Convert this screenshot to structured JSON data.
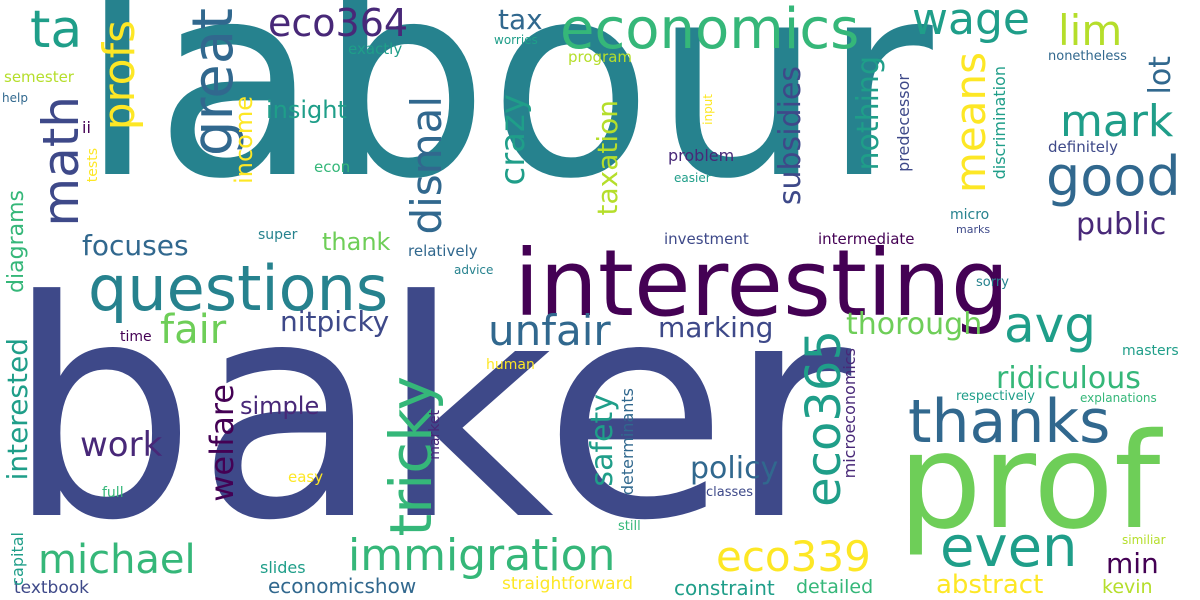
{
  "palette": [
    "#440154",
    "#482878",
    "#3e4989",
    "#31688e",
    "#26828e",
    "#1f9e89",
    "#35b779",
    "#6ece58",
    "#b5de2b",
    "#fde725"
  ],
  "words": [
    {
      "text": "labour",
      "color": "#26828e",
      "orientation": "horizontal"
    },
    {
      "text": "baker",
      "color": "#3e4989",
      "orientation": "horizontal"
    },
    {
      "text": "interesting",
      "color": "#440154",
      "orientation": "horizontal"
    },
    {
      "text": "prof",
      "color": "#6ece58",
      "orientation": "horizontal"
    },
    {
      "text": "questions",
      "color": "#26828e",
      "orientation": "horizontal"
    },
    {
      "text": "economics",
      "color": "#35b779",
      "orientation": "horizontal"
    },
    {
      "text": "thanks",
      "color": "#31688e",
      "orientation": "horizontal"
    },
    {
      "text": "immigration",
      "color": "#35b779",
      "orientation": "horizontal"
    },
    {
      "text": "even",
      "color": "#1f9e89",
      "orientation": "horizontal"
    },
    {
      "text": "avg",
      "color": "#1f9e89",
      "orientation": "horizontal"
    },
    {
      "text": "good",
      "color": "#31688e",
      "orientation": "horizontal"
    },
    {
      "text": "eco339",
      "color": "#fde725",
      "orientation": "horizontal"
    },
    {
      "text": "unfair",
      "color": "#31688e",
      "orientation": "horizontal"
    },
    {
      "text": "michael",
      "color": "#35b779",
      "orientation": "horizontal"
    },
    {
      "text": "mark",
      "color": "#1f9e89",
      "orientation": "horizontal"
    },
    {
      "text": "eco364",
      "color": "#482878",
      "orientation": "horizontal"
    },
    {
      "text": "wage",
      "color": "#1f9e89",
      "orientation": "horizontal"
    },
    {
      "text": "ta",
      "color": "#1f9e89",
      "orientation": "horizontal"
    },
    {
      "text": "fair",
      "color": "#6ece58",
      "orientation": "horizontal"
    },
    {
      "text": "lim",
      "color": "#b5de2b",
      "orientation": "horizontal"
    },
    {
      "text": "work",
      "color": "#482878",
      "orientation": "horizontal"
    },
    {
      "text": "nitpicky",
      "color": "#3e4989",
      "orientation": "horizontal"
    },
    {
      "text": "ridiculous",
      "color": "#35b779",
      "orientation": "horizontal"
    },
    {
      "text": "thorough",
      "color": "#6ece58",
      "orientation": "horizontal"
    },
    {
      "text": "marking",
      "color": "#3e4989",
      "orientation": "horizontal"
    },
    {
      "text": "policy",
      "color": "#31688e",
      "orientation": "horizontal"
    },
    {
      "text": "public",
      "color": "#482878",
      "orientation": "horizontal"
    },
    {
      "text": "focuses",
      "color": "#31688e",
      "orientation": "horizontal"
    },
    {
      "text": "abstract",
      "color": "#fde725",
      "orientation": "horizontal"
    },
    {
      "text": "min",
      "color": "#440154",
      "orientation": "horizontal"
    },
    {
      "text": "simple",
      "color": "#482878",
      "orientation": "horizontal"
    },
    {
      "text": "insight",
      "color": "#1f9e89",
      "orientation": "horizontal"
    },
    {
      "text": "thank",
      "color": "#6ece58",
      "orientation": "horizontal"
    },
    {
      "text": "tax",
      "color": "#31688e",
      "orientation": "horizontal"
    },
    {
      "text": "economicshow",
      "color": "#31688e",
      "orientation": "horizontal"
    },
    {
      "text": "slides",
      "color": "#1f9e89",
      "orientation": "horizontal"
    },
    {
      "text": "constraint",
      "color": "#1f9e89",
      "orientation": "horizontal"
    },
    {
      "text": "straightforward",
      "color": "#fde725",
      "orientation": "horizontal"
    },
    {
      "text": "detailed",
      "color": "#35b779",
      "orientation": "horizontal"
    },
    {
      "text": "kevin",
      "color": "#b5de2b",
      "orientation": "horizontal"
    },
    {
      "text": "textbook",
      "color": "#3e4989",
      "orientation": "horizontal"
    },
    {
      "text": "investment",
      "color": "#3e4989",
      "orientation": "horizontal"
    },
    {
      "text": "intermediate",
      "color": "#440154",
      "orientation": "horizontal"
    },
    {
      "text": "relatively",
      "color": "#31688e",
      "orientation": "horizontal"
    },
    {
      "text": "problem",
      "color": "#482878",
      "orientation": "horizontal"
    },
    {
      "text": "exactly",
      "color": "#1f9e89",
      "orientation": "horizontal"
    },
    {
      "text": "semester",
      "color": "#b5de2b",
      "orientation": "horizontal"
    },
    {
      "text": "program",
      "color": "#b5de2b",
      "orientation": "horizontal"
    },
    {
      "text": "worries",
      "color": "#1f9e89",
      "orientation": "horizontal"
    },
    {
      "text": "nonetheless",
      "color": "#31688e",
      "orientation": "horizontal"
    },
    {
      "text": "definitely",
      "color": "#3e4989",
      "orientation": "horizontal"
    },
    {
      "text": "masters",
      "color": "#1f9e89",
      "orientation": "horizontal"
    },
    {
      "text": "respectively",
      "color": "#1f9e89",
      "orientation": "horizontal"
    },
    {
      "text": "explanations",
      "color": "#35b779",
      "orientation": "horizontal"
    },
    {
      "text": "similiar",
      "color": "#b5de2b",
      "orientation": "horizontal"
    },
    {
      "text": "sorry",
      "color": "#26828e",
      "orientation": "horizontal"
    },
    {
      "text": "marks",
      "color": "#3e4989",
      "orientation": "horizontal"
    },
    {
      "text": "super",
      "color": "#26828e",
      "orientation": "horizontal"
    },
    {
      "text": "advice",
      "color": "#26828e",
      "orientation": "horizontal"
    },
    {
      "text": "human",
      "color": "#fde725",
      "orientation": "horizontal"
    },
    {
      "text": "easy",
      "color": "#fde725",
      "orientation": "horizontal"
    },
    {
      "text": "econ",
      "color": "#35b779",
      "orientation": "horizontal"
    },
    {
      "text": "easier",
      "color": "#1f9e89",
      "orientation": "horizontal"
    },
    {
      "text": "classes",
      "color": "#3e4989",
      "orientation": "horizontal"
    },
    {
      "text": "still",
      "color": "#35b779",
      "orientation": "horizontal"
    },
    {
      "text": "micro",
      "color": "#26828e",
      "orientation": "horizontal"
    },
    {
      "text": "time",
      "color": "#440154",
      "orientation": "horizontal"
    },
    {
      "text": "help",
      "color": "#31688e",
      "orientation": "horizontal"
    },
    {
      "text": "ii",
      "color": "#440154",
      "orientation": "horizontal"
    },
    {
      "text": "full",
      "color": "#35b779",
      "orientation": "horizontal"
    },
    {
      "text": "math",
      "color": "#3e4989",
      "orientation": "vertical"
    },
    {
      "text": "profs",
      "color": "#fde725",
      "orientation": "vertical"
    },
    {
      "text": "great",
      "color": "#31688e",
      "orientation": "vertical"
    },
    {
      "text": "dismal",
      "color": "#31688e",
      "orientation": "vertical"
    },
    {
      "text": "income",
      "color": "#fde725",
      "orientation": "vertical"
    },
    {
      "text": "crazy",
      "color": "#1f9e89",
      "orientation": "vertical"
    },
    {
      "text": "means",
      "color": "#fde725",
      "orientation": "vertical"
    },
    {
      "text": "subsidies",
      "color": "#3e4989",
      "orientation": "vertical"
    },
    {
      "text": "taxation",
      "color": "#b5de2b",
      "orientation": "vertical"
    },
    {
      "text": "nothing",
      "color": "#1f9e89",
      "orientation": "vertical"
    },
    {
      "text": "lot",
      "color": "#31688e",
      "orientation": "vertical"
    },
    {
      "text": "tricky",
      "color": "#35b779",
      "orientation": "vertical"
    },
    {
      "text": "eco365",
      "color": "#1f9e89",
      "orientation": "vertical"
    },
    {
      "text": "welfare",
      "color": "#440154",
      "orientation": "vertical"
    },
    {
      "text": "interested",
      "color": "#1f9e89",
      "orientation": "vertical"
    },
    {
      "text": "diagrams",
      "color": "#35b779",
      "orientation": "vertical"
    },
    {
      "text": "safety",
      "color": "#1f9e89",
      "orientation": "vertical"
    },
    {
      "text": "microeconomics",
      "color": "#482878",
      "orientation": "vertical"
    },
    {
      "text": "determinants",
      "color": "#31688e",
      "orientation": "vertical"
    },
    {
      "text": "market",
      "color": "#482878",
      "orientation": "vertical"
    },
    {
      "text": "predecessor",
      "color": "#3e4989",
      "orientation": "vertical"
    },
    {
      "text": "discrimination",
      "color": "#1f9e89",
      "orientation": "vertical"
    },
    {
      "text": "input",
      "color": "#fde725",
      "orientation": "vertical"
    },
    {
      "text": "tests",
      "color": "#fde725",
      "orientation": "vertical"
    },
    {
      "text": "capital",
      "color": "#1f9e89",
      "orientation": "vertical"
    }
  ]
}
